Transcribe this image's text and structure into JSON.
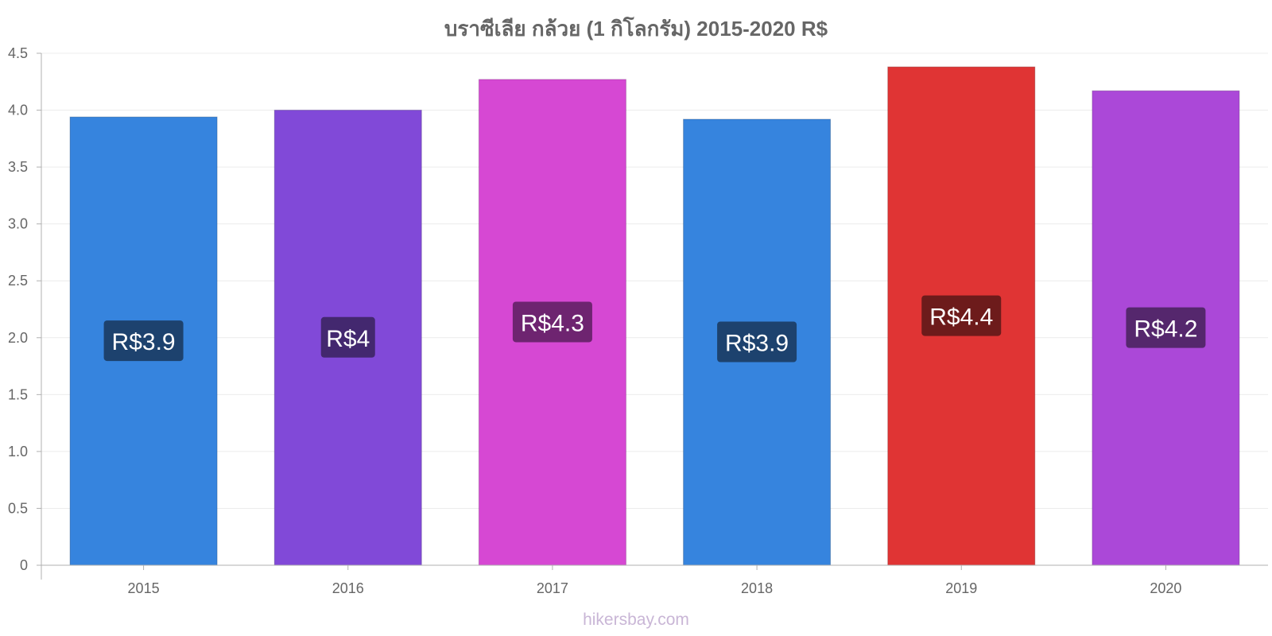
{
  "chart_data": {
    "type": "bar",
    "title": "บราซีเลีย กล้วย (1 กิโลกรัม) 2015-2020 R$",
    "categories": [
      "2015",
      "2016",
      "2017",
      "2018",
      "2019",
      "2020"
    ],
    "values": [
      3.94,
      4.0,
      4.27,
      3.92,
      4.38,
      4.17
    ],
    "labels": [
      "R$3.9",
      "R$4",
      "R$4.3",
      "R$3.9",
      "R$4.4",
      "R$4.2"
    ],
    "colors": [
      "#3684de",
      "#8149d8",
      "#d648d3",
      "#3684de",
      "#e03434",
      "#ab48d8"
    ],
    "label_bg_colors": [
      "#1d426e",
      "#43286f",
      "#6e2470",
      "#1d426e",
      "#6d1b1b",
      "#55276d"
    ],
    "y_ticks": [
      "0",
      "0.5",
      "1.0",
      "1.5",
      "2.0",
      "2.5",
      "3.0",
      "3.5",
      "4.0",
      "4.5"
    ],
    "ylim": [
      0,
      4.5
    ],
    "xlabel": "",
    "ylabel": "",
    "grid": true
  },
  "watermark": "hikersbay.com"
}
